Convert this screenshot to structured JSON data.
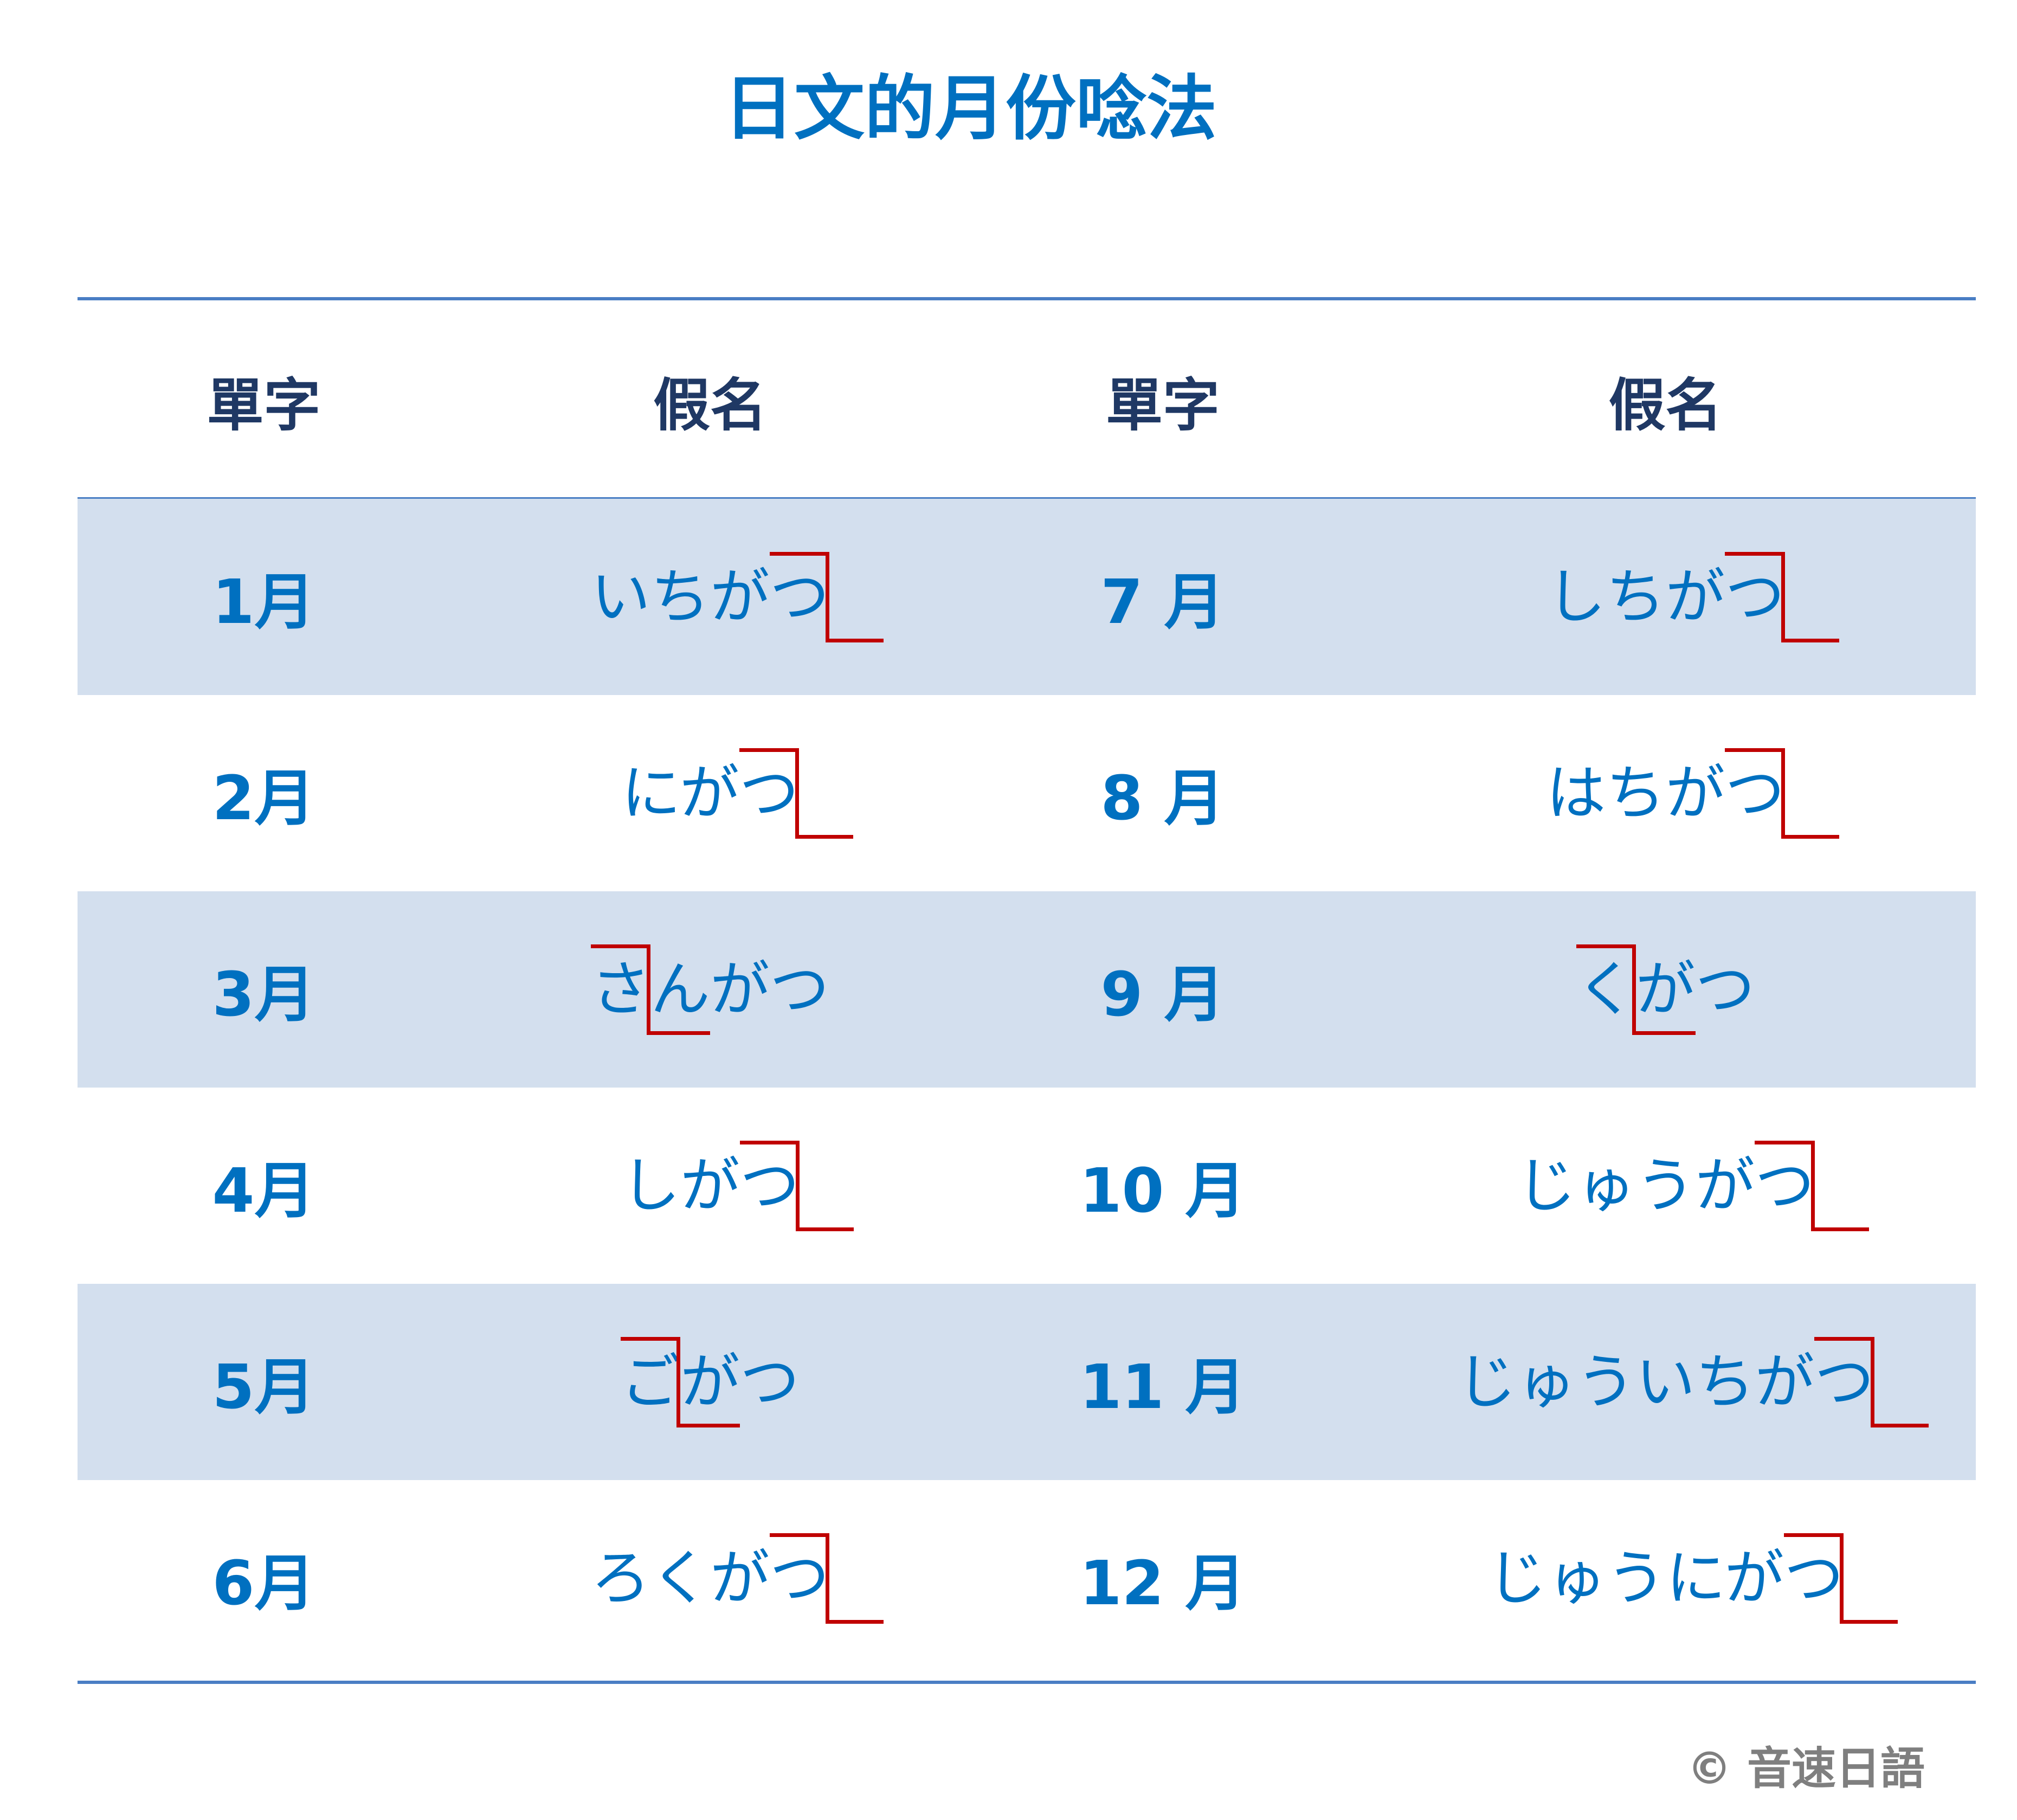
{
  "title": "日文的月份唸法",
  "headers": [
    "單字",
    "假名",
    "單字",
    "假名"
  ],
  "colors": {
    "text": "#0070c0",
    "header": "#1f3864",
    "accent_mark": "#c00000",
    "row_shade": "#d3dfee",
    "rule": "#4a7ec4"
  },
  "rows": [
    {
      "left": {
        "kanji": "1月",
        "kana": "いちがつ",
        "accent_index": 3
      },
      "right": {
        "kanji": "7 月",
        "kana": "しちがつ",
        "accent_index": 3
      }
    },
    {
      "left": {
        "kanji": "2月",
        "kana": "にがつ",
        "accent_index": 2
      },
      "right": {
        "kanji": "8 月",
        "kana": "はちがつ",
        "accent_index": 3
      }
    },
    {
      "left": {
        "kanji": "3月",
        "kana": "さんがつ",
        "accent_index": 0
      },
      "right": {
        "kanji": "9 月",
        "kana": "くがつ",
        "accent_index": 0
      }
    },
    {
      "left": {
        "kanji": "4月",
        "kana": "しがつ",
        "accent_index": 2
      },
      "right": {
        "kanji": "10 月",
        "kana": "じゅうがつ",
        "accent_index": 4
      }
    },
    {
      "left": {
        "kanji": "5月",
        "kana": "ごがつ",
        "accent_index": 0
      },
      "right": {
        "kanji": "11 月",
        "kana": "じゅういちがつ",
        "accent_index": 6
      }
    },
    {
      "left": {
        "kanji": "6月",
        "kana": "ろくがつ",
        "accent_index": 3
      },
      "right": {
        "kanji": "12 月",
        "kana": "じゅうにがつ",
        "accent_index": 5
      }
    }
  ],
  "copyright": "©  音速日語"
}
